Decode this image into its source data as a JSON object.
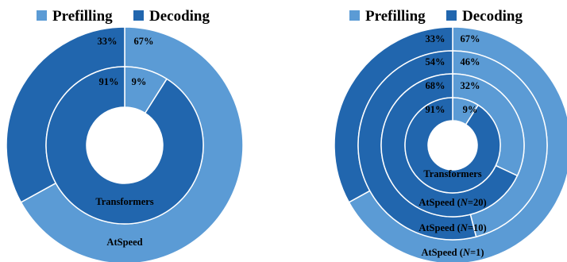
{
  "colors": {
    "prefilling": "#5b9bd5",
    "decoding": "#2166ae",
    "separator": "#ffffff"
  },
  "legend": [
    {
      "name": "Prefilling",
      "color": "#5b9bd5"
    },
    {
      "name": "Decoding",
      "color": "#2166ae"
    }
  ],
  "chart_data": [
    {
      "type": "donut",
      "legend_position": "top",
      "series_names": [
        "Prefilling",
        "Decoding"
      ],
      "rings": [
        {
          "label": "AtSpeed",
          "values": [
            67,
            33
          ],
          "value_labels": [
            "67%",
            "33%"
          ]
        },
        {
          "label": "Transformers",
          "values": [
            9,
            91
          ],
          "value_labels": [
            "9%",
            "91%"
          ]
        }
      ]
    },
    {
      "type": "donut",
      "legend_position": "top",
      "series_names": [
        "Prefilling",
        "Decoding"
      ],
      "rings": [
        {
          "label": "AtSpeed (N=1)",
          "label_parts": [
            "AtSpeed (",
            "N",
            "=1)"
          ],
          "values": [
            67,
            33
          ],
          "value_labels": [
            "67%",
            "33%"
          ]
        },
        {
          "label": "AtSpeed (N=10)",
          "label_parts": [
            "AtSpeed (",
            "N",
            "=10)"
          ],
          "values": [
            46,
            54
          ],
          "value_labels": [
            "46%",
            "54%"
          ]
        },
        {
          "label": "AtSpeed (N=20)",
          "label_parts": [
            "AtSpeed (",
            "N",
            "=20)"
          ],
          "values": [
            32,
            68
          ],
          "value_labels": [
            "32%",
            "68%"
          ]
        },
        {
          "label": "Transformers",
          "label_parts": [
            "Transformers",
            "",
            ""
          ],
          "values": [
            9,
            91
          ],
          "value_labels": [
            "9%",
            "91%"
          ]
        }
      ]
    }
  ]
}
